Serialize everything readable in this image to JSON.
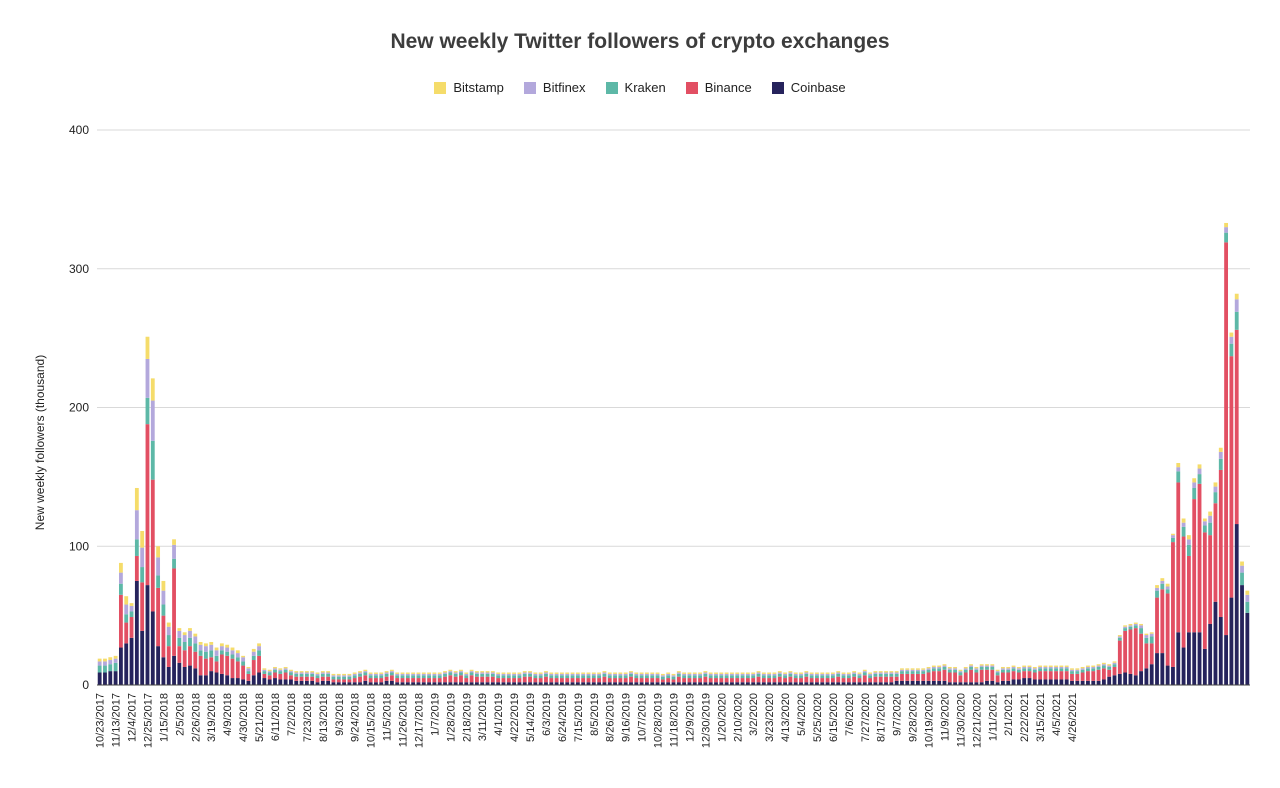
{
  "chart_data": {
    "type": "bar",
    "stacked": true,
    "title": "New weekly Twitter followers of crypto exchanges",
    "ylabel": "New weekly followers (thousand)",
    "xlabel": "",
    "ylim": [
      0,
      400
    ],
    "yticks": [
      0,
      100,
      200,
      300,
      400
    ],
    "grid": true,
    "legend_position": "top",
    "legend_order": [
      "Bitstamp",
      "Bitfinex",
      "Kraken",
      "Binance",
      "Coinbase"
    ],
    "tick_labels": [
      "10/23/2017",
      "11/13/2017",
      "12/4/2017",
      "12/25/2017",
      "1/15/2018",
      "2/5/2018",
      "2/26/2018",
      "3/19/2018",
      "4/9/2018",
      "4/30/2018",
      "5/21/2018",
      "6/11/2018",
      "7/2/2018",
      "7/23/2018",
      "8/13/2018",
      "9/3/2018",
      "9/24/2018",
      "10/15/2018",
      "11/5/2018",
      "11/26/2018",
      "12/17/2018",
      "1/7/2019",
      "1/28/2019",
      "2/18/2019",
      "3/11/2019",
      "4/1/2019",
      "4/22/2019",
      "5/14/2019",
      "6/3/2019",
      "6/24/2019",
      "7/15/2019",
      "8/5/2019",
      "8/26/2019",
      "9/16/2019",
      "10/7/2019",
      "10/28/2019",
      "11/18/2019",
      "12/9/2019",
      "12/30/2019",
      "1/20/2020",
      "2/10/2020",
      "3/2/2020",
      "3/23/2020",
      "4/13/2020",
      "5/4/2020",
      "5/25/2020",
      "6/15/2020",
      "7/6/2020",
      "7/27/2020",
      "8/17/2020",
      "9/7/2020",
      "9/28/2020",
      "10/19/2020",
      "11/9/2020",
      "11/30/2020",
      "12/21/2020",
      "1/11/2021",
      "2/1/2021",
      "2/22/2021",
      "3/15/2021",
      "4/5/2021",
      "4/26/2021"
    ],
    "series": [
      {
        "name": "Coinbase",
        "color": "#26235c",
        "values": [
          9,
          9,
          10,
          10,
          27,
          30,
          34,
          75,
          39,
          72,
          53,
          28,
          20,
          13,
          21,
          16,
          13,
          14,
          12,
          7,
          7,
          10,
          9,
          8,
          7,
          5,
          5,
          4,
          3,
          7,
          9,
          5,
          4,
          5,
          4,
          4,
          4,
          3,
          3,
          3,
          3,
          2,
          3,
          3,
          2,
          2,
          2,
          2,
          2,
          2,
          3,
          2,
          2,
          2,
          3,
          3,
          2,
          2,
          2,
          2,
          2,
          2,
          2,
          2,
          2,
          2,
          2,
          2,
          2,
          2,
          2,
          2,
          2,
          2,
          2,
          2,
          2,
          2,
          2,
          2,
          2,
          2,
          2,
          2,
          2,
          2,
          2,
          2,
          2,
          2,
          2,
          2,
          2,
          2,
          2,
          2,
          2,
          2,
          2,
          2,
          2,
          2,
          2,
          2,
          2,
          2,
          2,
          2,
          2,
          2,
          2,
          2,
          2,
          2,
          2,
          2,
          2,
          2,
          2,
          2,
          2,
          2,
          2,
          2,
          2,
          2,
          2,
          2,
          2,
          2,
          2,
          2,
          2,
          2,
          2,
          2,
          2,
          2,
          2,
          2,
          2,
          2,
          2,
          2,
          2,
          2,
          2,
          2,
          2,
          2,
          3,
          3,
          3,
          3,
          3,
          3,
          3,
          3,
          3,
          3,
          2,
          2,
          2,
          2,
          2,
          2,
          2,
          3,
          3,
          2,
          3,
          3,
          4,
          4,
          5,
          5,
          4,
          4,
          4,
          4,
          4,
          4,
          4,
          3,
          3,
          3,
          3,
          3,
          3,
          4,
          6,
          7,
          8,
          9,
          8,
          7,
          10,
          12,
          15,
          23,
          23,
          14,
          13,
          38,
          27,
          38,
          38,
          38,
          26,
          44,
          60,
          49,
          36,
          63,
          116,
          72,
          52
        ]
      },
      {
        "name": "Binance",
        "color": "#e24f63",
        "values": [
          0,
          0,
          0,
          0,
          38,
          15,
          15,
          18,
          35,
          116,
          95,
          42,
          30,
          15,
          63,
          12,
          12,
          14,
          12,
          14,
          12,
          10,
          8,
          14,
          14,
          14,
          12,
          10,
          5,
          11,
          12,
          3,
          3,
          4,
          4,
          5,
          3,
          3,
          3,
          3,
          3,
          3,
          3,
          3,
          2,
          2,
          2,
          2,
          3,
          4,
          4,
          3,
          3,
          3,
          3,
          4,
          3,
          3,
          3,
          3,
          3,
          3,
          3,
          3,
          3,
          4,
          5,
          4,
          5,
          3,
          5,
          4,
          4,
          4,
          4,
          3,
          3,
          3,
          3,
          3,
          4,
          4,
          3,
          3,
          4,
          3,
          3,
          3,
          3,
          3,
          3,
          3,
          3,
          3,
          3,
          4,
          3,
          3,
          3,
          3,
          4,
          3,
          3,
          3,
          3,
          3,
          2,
          3,
          2,
          4,
          3,
          3,
          3,
          3,
          4,
          3,
          3,
          3,
          3,
          3,
          3,
          3,
          3,
          3,
          4,
          3,
          3,
          3,
          4,
          3,
          4,
          3,
          3,
          4,
          3,
          3,
          3,
          3,
          3,
          4,
          3,
          3,
          4,
          3,
          5,
          3,
          4,
          4,
          4,
          4,
          3,
          5,
          5,
          5,
          5,
          5,
          6,
          7,
          7,
          8,
          7,
          7,
          5,
          7,
          9,
          7,
          9,
          8,
          8,
          5,
          6,
          6,
          6,
          5,
          5,
          5,
          5,
          6,
          6,
          6,
          6,
          6,
          6,
          5,
          5,
          6,
          7,
          7,
          8,
          8,
          5,
          6,
          24,
          30,
          32,
          34,
          27,
          18,
          15,
          40,
          46,
          52,
          90,
          108,
          80,
          55,
          96,
          107,
          84,
          64,
          71,
          106,
          283,
          174,
          140
        ]
      },
      {
        "name": "Kraken",
        "color": "#5db8a7",
        "values": [
          5,
          5,
          5,
          6,
          8,
          6,
          4,
          12,
          11,
          19,
          28,
          9,
          8,
          8,
          7,
          6,
          6,
          6,
          6,
          4,
          5,
          5,
          4,
          3,
          3,
          3,
          3,
          3,
          2,
          3,
          4,
          2,
          2,
          2,
          2,
          2,
          2,
          2,
          2,
          2,
          2,
          2,
          2,
          2,
          2,
          2,
          2,
          2,
          2,
          2,
          2,
          2,
          2,
          2,
          2,
          2,
          2,
          2,
          2,
          2,
          2,
          2,
          2,
          2,
          2,
          2,
          2,
          2,
          2,
          2,
          2,
          2,
          2,
          2,
          2,
          2,
          2,
          2,
          2,
          2,
          2,
          2,
          2,
          2,
          2,
          2,
          2,
          2,
          2,
          2,
          2,
          2,
          2,
          2,
          2,
          2,
          2,
          2,
          2,
          2,
          2,
          2,
          2,
          2,
          2,
          2,
          2,
          2,
          2,
          2,
          2,
          2,
          2,
          2,
          2,
          2,
          2,
          2,
          2,
          2,
          2,
          2,
          2,
          2,
          2,
          2,
          2,
          2,
          2,
          2,
          2,
          2,
          2,
          2,
          2,
          2,
          2,
          2,
          2,
          2,
          2,
          2,
          2,
          2,
          2,
          2,
          2,
          2,
          2,
          2,
          2,
          2,
          2,
          2,
          2,
          2,
          2,
          2,
          2,
          2,
          2,
          2,
          2,
          2,
          2,
          2,
          2,
          2,
          2,
          2,
          2,
          2,
          2,
          2,
          2,
          2,
          2,
          2,
          2,
          2,
          2,
          2,
          2,
          2,
          2,
          2,
          2,
          2,
          2,
          2,
          2,
          2,
          2,
          2,
          2,
          2,
          4,
          4,
          5,
          5,
          4,
          3,
          3,
          8,
          7,
          8,
          8,
          7,
          5,
          9,
          8,
          8,
          7,
          9,
          13,
          9,
          8
        ]
      },
      {
        "name": "Bitfinex",
        "color": "#b3a8dc",
        "values": [
          3,
          3,
          3,
          3,
          8,
          7,
          4,
          21,
          14,
          28,
          29,
          13,
          10,
          6,
          10,
          5,
          5,
          5,
          5,
          4,
          4,
          4,
          4,
          3,
          3,
          3,
          3,
          3,
          2,
          3,
          3,
          1,
          1,
          1,
          1,
          1,
          1,
          1,
          1,
          1,
          1,
          1,
          1,
          1,
          1,
          1,
          1,
          1,
          1,
          1,
          1,
          1,
          1,
          1,
          1,
          1,
          1,
          1,
          1,
          1,
          1,
          1,
          1,
          1,
          1,
          1,
          1,
          1,
          1,
          1,
          1,
          1,
          1,
          1,
          1,
          1,
          1,
          1,
          1,
          1,
          1,
          1,
          1,
          1,
          1,
          1,
          1,
          1,
          1,
          1,
          1,
          1,
          1,
          1,
          1,
          1,
          1,
          1,
          1,
          1,
          1,
          1,
          1,
          1,
          1,
          1,
          1,
          1,
          1,
          1,
          1,
          1,
          1,
          1,
          1,
          1,
          1,
          1,
          1,
          1,
          1,
          1,
          1,
          1,
          1,
          1,
          1,
          1,
          1,
          1,
          1,
          1,
          1,
          1,
          1,
          1,
          1,
          1,
          1,
          1,
          1,
          1,
          1,
          1,
          1,
          1,
          1,
          1,
          1,
          1,
          1,
          1,
          1,
          1,
          1,
          1,
          1,
          1,
          1,
          1,
          1,
          1,
          1,
          1,
          1,
          1,
          1,
          1,
          1,
          1,
          1,
          1,
          1,
          1,
          1,
          1,
          1,
          1,
          1,
          1,
          1,
          1,
          1,
          1,
          1,
          1,
          1,
          1,
          1,
          1,
          1,
          1,
          1,
          1,
          1,
          1,
          2,
          2,
          2,
          2,
          2,
          2,
          2,
          3,
          3,
          4,
          4,
          4,
          3,
          5,
          4,
          5,
          4,
          5,
          9,
          5,
          5
        ]
      },
      {
        "name": "Bitstamp",
        "color": "#f5dc6a",
        "values": [
          2,
          2,
          2,
          2,
          7,
          6,
          2,
          16,
          12,
          16,
          16,
          8,
          7,
          3,
          4,
          2,
          2,
          2,
          2,
          2,
          2,
          2,
          2,
          2,
          2,
          2,
          2,
          1,
          1,
          2,
          2,
          1,
          1,
          1,
          1,
          1,
          1,
          1,
          1,
          1,
          1,
          1,
          1,
          1,
          1,
          1,
          1,
          1,
          1,
          1,
          1,
          1,
          1,
          1,
          1,
          1,
          1,
          1,
          1,
          1,
          1,
          1,
          1,
          1,
          1,
          1,
          1,
          1,
          1,
          1,
          1,
          1,
          1,
          1,
          1,
          1,
          1,
          1,
          1,
          1,
          1,
          1,
          1,
          1,
          1,
          1,
          1,
          1,
          1,
          1,
          1,
          1,
          1,
          1,
          1,
          1,
          1,
          1,
          1,
          1,
          1,
          1,
          1,
          1,
          1,
          1,
          1,
          1,
          1,
          1,
          1,
          1,
          1,
          1,
          1,
          1,
          1,
          1,
          1,
          1,
          1,
          1,
          1,
          1,
          1,
          1,
          1,
          1,
          1,
          1,
          1,
          1,
          1,
          1,
          1,
          1,
          1,
          1,
          1,
          1,
          1,
          1,
          1,
          1,
          1,
          1,
          1,
          1,
          1,
          1,
          1,
          1,
          1,
          1,
          1,
          1,
          1,
          1,
          1,
          1,
          1,
          1,
          1,
          1,
          1,
          1,
          1,
          1,
          1,
          1,
          1,
          1,
          1,
          1,
          1,
          1,
          1,
          1,
          1,
          1,
          1,
          1,
          1,
          1,
          1,
          1,
          1,
          1,
          1,
          1,
          1,
          1,
          1,
          1,
          1,
          1,
          1,
          1,
          1,
          2,
          2,
          2,
          1,
          3,
          3,
          3,
          3,
          3,
          2,
          3,
          3,
          3,
          3,
          3,
          4,
          3,
          3
        ]
      }
    ]
  }
}
